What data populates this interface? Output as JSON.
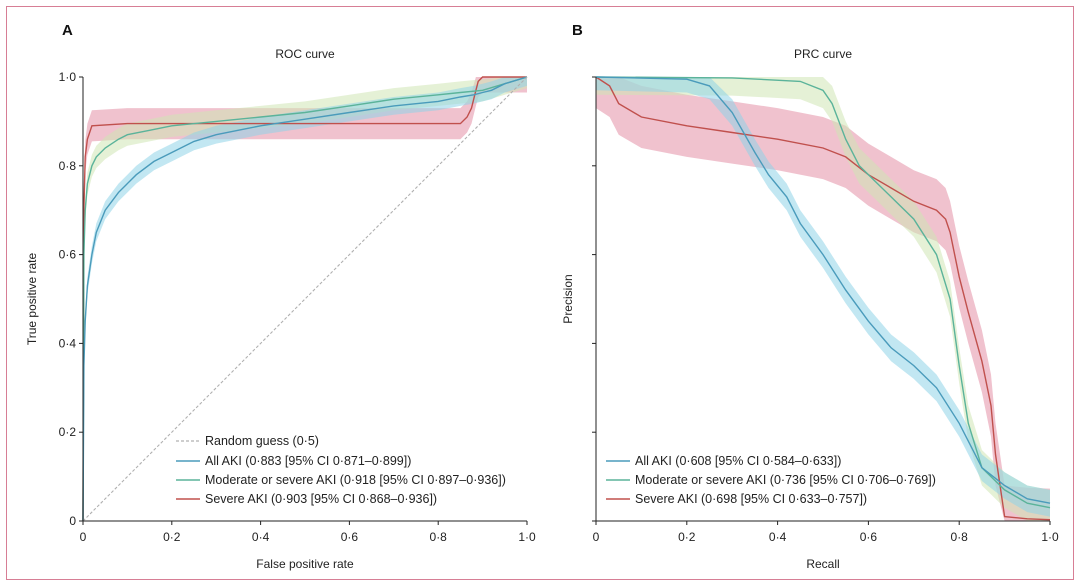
{
  "figure": {
    "colors": {
      "all": "#4a9bbb",
      "allBand": "#8fd3e8",
      "moderate": "#5bb39a",
      "moderateBand": "#cfe6b4",
      "severe": "#c0504d",
      "severeBand": "#e48fa5",
      "random": "#b0b0b0",
      "border": "#d77e95"
    }
  },
  "chart_data": [
    {
      "type": "line",
      "panel_letter": "A",
      "title": "ROC curve",
      "xlabel": "False positive rate",
      "ylabel": "True positive rate",
      "xlim": [
        0,
        1
      ],
      "ylim": [
        0,
        1
      ],
      "xticks": [
        "0",
        "0·2",
        "0·4",
        "0·6",
        "0·8",
        "1·0"
      ],
      "yticks": [
        "0",
        "0·2",
        "0·4",
        "0·6",
        "0·8",
        "1·0"
      ],
      "legend": {
        "position": "bottom-left",
        "entries": [
          "Random guess (0·5)",
          "All AKI (0·883 [95% CI 0·871–0·899])",
          "Moderate or severe AKI (0·918 [95% CI 0·897–0·936])",
          "Severe AKI (0·903 [95% CI 0·868–0·936])"
        ]
      },
      "series": [
        {
          "name": "Random guess",
          "key": "random",
          "x": [
            0,
            1
          ],
          "y": [
            0,
            1
          ]
        },
        {
          "name": "All AKI",
          "key": "all",
          "x": [
            0,
            0.002,
            0.005,
            0.01,
            0.02,
            0.03,
            0.05,
            0.08,
            0.12,
            0.16,
            0.2,
            0.25,
            0.3,
            0.4,
            0.5,
            0.6,
            0.7,
            0.8,
            0.85,
            0.88,
            0.9,
            0.92,
            0.95,
            1.0
          ],
          "y": [
            0,
            0.35,
            0.45,
            0.53,
            0.6,
            0.65,
            0.7,
            0.74,
            0.78,
            0.81,
            0.83,
            0.855,
            0.87,
            0.89,
            0.905,
            0.92,
            0.935,
            0.945,
            0.955,
            0.96,
            0.965,
            0.97,
            0.985,
            1.0
          ],
          "band": 0.02
        },
        {
          "name": "Moderate or severe AKI",
          "key": "moderate",
          "x": [
            0,
            0.002,
            0.005,
            0.01,
            0.02,
            0.03,
            0.05,
            0.08,
            0.1,
            0.15,
            0.2,
            0.3,
            0.4,
            0.5,
            0.6,
            0.7,
            0.8,
            0.85,
            0.9,
            0.95,
            1.0
          ],
          "y": [
            0,
            0.6,
            0.7,
            0.76,
            0.8,
            0.82,
            0.84,
            0.86,
            0.87,
            0.88,
            0.89,
            0.9,
            0.91,
            0.92,
            0.935,
            0.95,
            0.96,
            0.965,
            0.97,
            0.985,
            1.0
          ],
          "band": 0.025
        },
        {
          "name": "Severe AKI",
          "key": "severe",
          "x": [
            0,
            0.002,
            0.005,
            0.01,
            0.02,
            0.1,
            0.3,
            0.5,
            0.7,
            0.85,
            0.865,
            0.875,
            0.885,
            0.89,
            0.9,
            1.0
          ],
          "y": [
            0,
            0.7,
            0.82,
            0.86,
            0.89,
            0.895,
            0.895,
            0.895,
            0.895,
            0.895,
            0.91,
            0.93,
            0.97,
            0.99,
            1.0,
            1.0
          ],
          "band": 0.035
        }
      ]
    },
    {
      "type": "line",
      "panel_letter": "B",
      "title": "PRC curve",
      "xlabel": "Recall",
      "ylabel": "Precision",
      "xlim": [
        0,
        1
      ],
      "ylim": [
        0,
        1
      ],
      "xticks": [
        "0",
        "0·2",
        "0·4",
        "0·6",
        "0·8",
        "1·0"
      ],
      "yticks": [
        "",
        "",
        "",
        "",
        "",
        ""
      ],
      "legend": {
        "position": "bottom-left",
        "entries": [
          "All AKI (0·608 [95% CI 0·584–0·633])",
          "Moderate or severe AKI (0·736 [95% CI 0·706–0·769])",
          "Severe AKI (0·698 [95% CI 0·633–0·757])"
        ]
      },
      "series": [
        {
          "name": "All AKI",
          "key": "all",
          "x": [
            0,
            0.2,
            0.25,
            0.3,
            0.35,
            0.38,
            0.42,
            0.45,
            0.5,
            0.55,
            0.6,
            0.65,
            0.7,
            0.75,
            0.8,
            0.85,
            0.9,
            0.95,
            1.0
          ],
          "y": [
            1.0,
            0.995,
            0.98,
            0.92,
            0.83,
            0.78,
            0.73,
            0.67,
            0.6,
            0.52,
            0.45,
            0.39,
            0.35,
            0.3,
            0.22,
            0.12,
            0.08,
            0.05,
            0.04
          ],
          "band": 0.03
        },
        {
          "name": "Moderate or severe AKI",
          "key": "moderate",
          "x": [
            0,
            0.3,
            0.45,
            0.5,
            0.52,
            0.55,
            0.58,
            0.62,
            0.65,
            0.7,
            0.75,
            0.78,
            0.8,
            0.82,
            0.85,
            0.9,
            0.95,
            1.0
          ],
          "y": [
            1.0,
            0.998,
            0.99,
            0.97,
            0.94,
            0.86,
            0.8,
            0.76,
            0.73,
            0.68,
            0.6,
            0.5,
            0.35,
            0.22,
            0.12,
            0.07,
            0.04,
            0.03
          ],
          "band": 0.04
        },
        {
          "name": "Severe AKI",
          "key": "severe",
          "x": [
            0,
            0.03,
            0.05,
            0.1,
            0.2,
            0.3,
            0.4,
            0.5,
            0.55,
            0.6,
            0.65,
            0.7,
            0.75,
            0.77,
            0.78,
            0.8,
            0.82,
            0.85,
            0.87,
            0.88,
            0.9,
            0.95,
            1.0
          ],
          "y": [
            1.0,
            0.98,
            0.94,
            0.91,
            0.89,
            0.875,
            0.86,
            0.84,
            0.82,
            0.78,
            0.75,
            0.72,
            0.7,
            0.68,
            0.65,
            0.55,
            0.47,
            0.36,
            0.26,
            0.15,
            0.01,
            0.005,
            0.003
          ],
          "band": 0.07
        }
      ]
    }
  ]
}
